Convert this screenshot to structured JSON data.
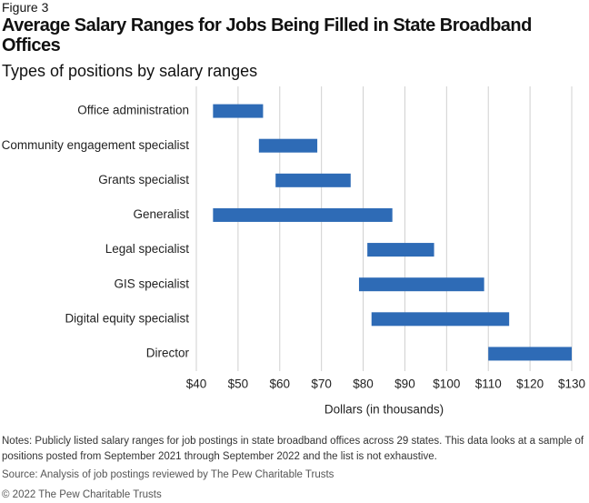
{
  "figure_label": "Figure 3",
  "notes": "Notes: Publicly listed salary ranges for job postings in state broadband offices across 29 states. This data looks at a sample of positions posted from September 2021 through September 2022 and the list is not exhaustive.",
  "source": "Source: Analysis of job postings reviewed by The Pew Charitable Trusts",
  "copyright": "© 2022 The Pew Charitable Trusts",
  "chart_data": {
    "type": "range-bar",
    "title": "Average Salary Ranges for Jobs Being Filled in State Broadband Offices",
    "subtitle": "Types of positions by salary ranges",
    "x_label": "Dollars (in thousands)",
    "categories": [
      "Office administration",
      "Community engagement specialist",
      "Grants specialist",
      "Generalist",
      "Legal specialist",
      "GIS specialist",
      "Digital equity specialist",
      "Director"
    ],
    "low": [
      44,
      55,
      59,
      44,
      81,
      79,
      82,
      110
    ],
    "high": [
      56,
      69,
      77,
      87,
      97,
      109,
      115,
      130
    ],
    "color": "#2e6bb6",
    "xlim": [
      40,
      130
    ],
    "xticks": [
      {
        "value": 40,
        "label": "$40"
      },
      {
        "value": 50,
        "label": "$50"
      },
      {
        "value": 60,
        "label": "$60"
      },
      {
        "value": 70,
        "label": "$70"
      },
      {
        "value": 80,
        "label": "$80"
      },
      {
        "value": 90,
        "label": "$90"
      },
      {
        "value": 100,
        "label": "$100"
      },
      {
        "value": 110,
        "label": "$110"
      },
      {
        "value": 120,
        "label": "$120"
      },
      {
        "value": 130,
        "label": "$130"
      }
    ],
    "grid": true
  }
}
